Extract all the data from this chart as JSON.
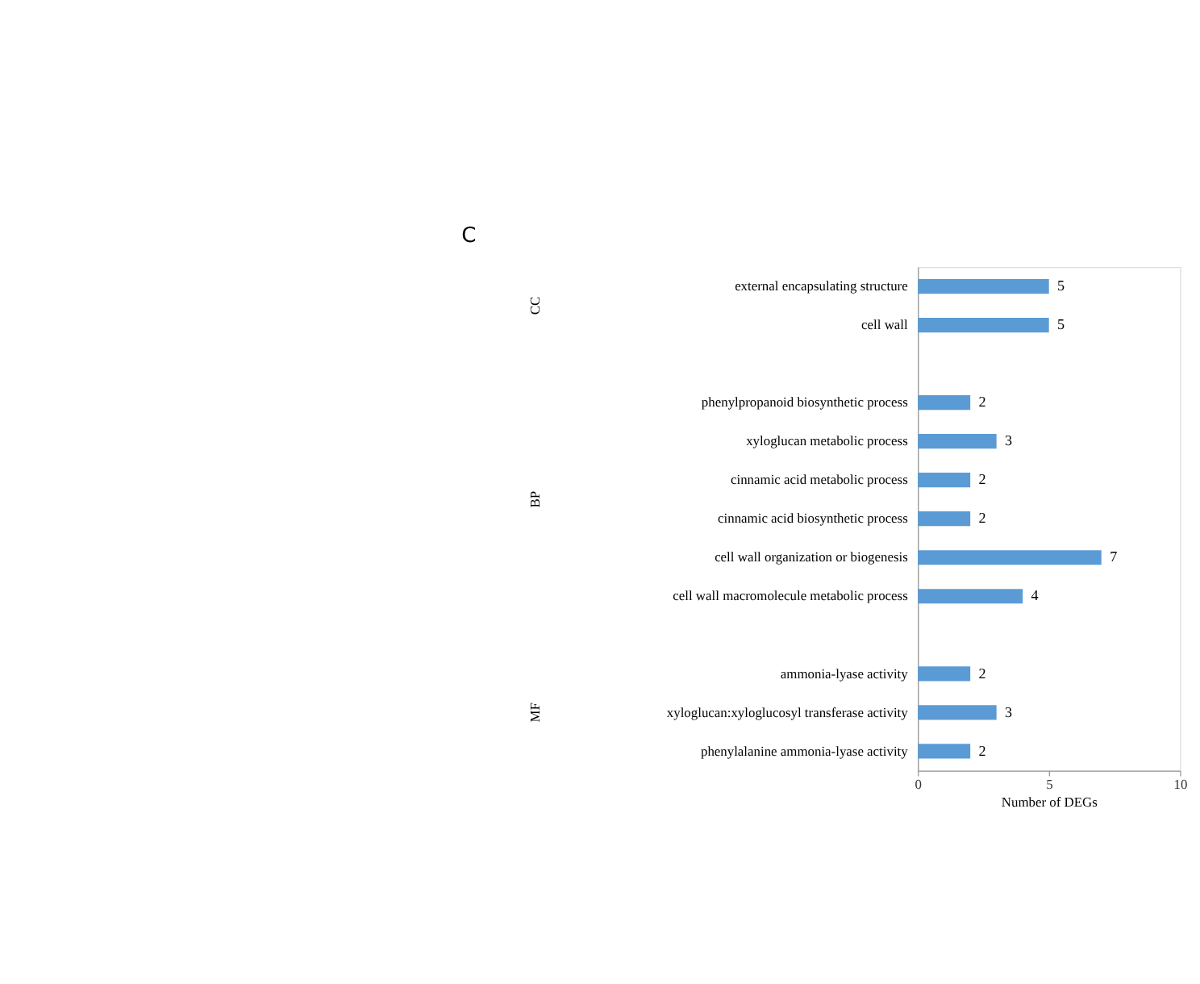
{
  "chart_data": {
    "type": "bar",
    "orientation": "horizontal",
    "xlabel": "Number of DEGs",
    "categories": [
      "external encapsulating structure",
      "cell wall",
      null,
      "phenylpropanoid biosynthetic process",
      "xyloglucan metabolic process",
      "cinnamic acid metabolic process",
      "cinnamic acid biosynthetic process",
      "cell wall organization or biogenesis",
      "cell wall macromolecule metabolic process",
      null,
      "ammonia-lyase activity",
      "xyloglucan:xyloglucosyl transferase activity",
      "phenylalanine ammonia-lyase activity"
    ],
    "values": [
      5,
      5,
      null,
      2,
      3,
      2,
      2,
      7,
      4,
      null,
      2,
      3,
      2
    ],
    "color": "#5b9bd5",
    "xlim": [
      0,
      10
    ],
    "xticks": [
      0,
      5,
      10
    ],
    "data_labels": true,
    "grid": false,
    "annotations": [
      "C",
      "CC",
      "BP",
      "MF"
    ]
  }
}
